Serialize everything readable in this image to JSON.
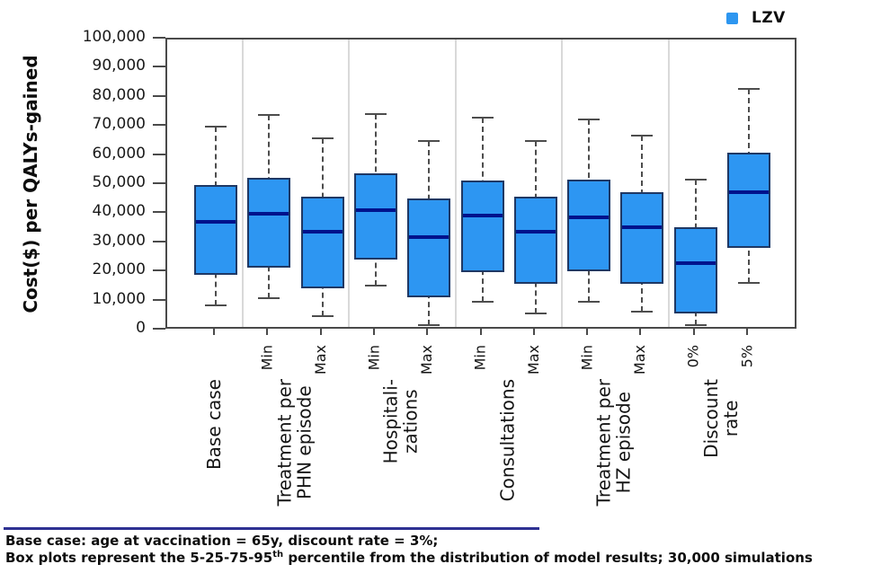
{
  "legend": {
    "label": "LZV",
    "swatch_color": "#2D96F0"
  },
  "y_axis": {
    "title": "Cost($) per QALYs-gained",
    "tick_labels": [
      "100,000",
      "90,000",
      "80,000",
      "70,000",
      "60,000",
      "50,000",
      "40,000",
      "30,000",
      "20,000",
      "10,000",
      "0"
    ]
  },
  "chart_data": {
    "type": "boxplot",
    "series": "LZV",
    "ylabel": "Cost($) per QALYs-gained",
    "ylim": [
      0,
      100000
    ],
    "y_tick_step": 10000,
    "percentiles_shown": "5-25-75-95 with median line",
    "legend_position": "top-right",
    "grid": false,
    "groups": [
      {
        "label": "Base case",
        "boxes": [
          {
            "sublabel": "",
            "p5": 8500,
            "p25": 19000,
            "p50": 37500,
            "p75": 50000,
            "p95": 70000
          }
        ]
      },
      {
        "label": "Treatment per\nPHN episode",
        "boxes": [
          {
            "sublabel": "Min",
            "p5": 11000,
            "p25": 21500,
            "p50": 40000,
            "p75": 52500,
            "p95": 74000
          },
          {
            "sublabel": "Max",
            "p5": 5000,
            "p25": 14500,
            "p50": 34000,
            "p75": 46000,
            "p95": 66000
          }
        ]
      },
      {
        "label": "Hospitali-\nzations",
        "boxes": [
          {
            "sublabel": "Min",
            "p5": 15500,
            "p25": 24500,
            "p50": 41500,
            "p75": 54000,
            "p95": 74500
          },
          {
            "sublabel": "Max",
            "p5": 2000,
            "p25": 11500,
            "p50": 32000,
            "p75": 45500,
            "p95": 65000
          }
        ]
      },
      {
        "label": "Consultations",
        "boxes": [
          {
            "sublabel": "Min",
            "p5": 10000,
            "p25": 20000,
            "p50": 39500,
            "p75": 51500,
            "p95": 73000
          },
          {
            "sublabel": "Max",
            "p5": 6000,
            "p25": 16000,
            "p50": 34000,
            "p75": 46000,
            "p95": 65000
          }
        ]
      },
      {
        "label": "Treatment per\nHZ episode",
        "boxes": [
          {
            "sublabel": "Min",
            "p5": 10000,
            "p25": 20500,
            "p50": 39000,
            "p75": 52000,
            "p95": 72500
          },
          {
            "sublabel": "Max",
            "p5": 6500,
            "p25": 16000,
            "p50": 35500,
            "p75": 47500,
            "p95": 67000
          }
        ]
      },
      {
        "label": "Discount\nrate",
        "boxes": [
          {
            "sublabel": "0%",
            "p5": 2000,
            "p25": 6000,
            "p50": 23000,
            "p75": 35500,
            "p95": 52000
          },
          {
            "sublabel": "5%",
            "p5": 16500,
            "p25": 28500,
            "p50": 47500,
            "p75": 61000,
            "p95": 83000
          }
        ]
      }
    ]
  },
  "footer": {
    "line1": "Base case: age at vaccination = 65y, discount rate = 3%;",
    "line2_prefix": "Box plots represent the 5-25-75-95",
    "line2_sup": "th",
    "line2_suffix": " percentile from the distribution of model results; 30,000 simulations"
  },
  "colors": {
    "box_fill": "#2D96F2",
    "box_border": "#1F3864",
    "median": "#00128C",
    "whisker": "#4D4D4D",
    "separator": "#D9D9D9",
    "plot_border": "#4A4A4A",
    "footer_rule": "#2E3192"
  }
}
